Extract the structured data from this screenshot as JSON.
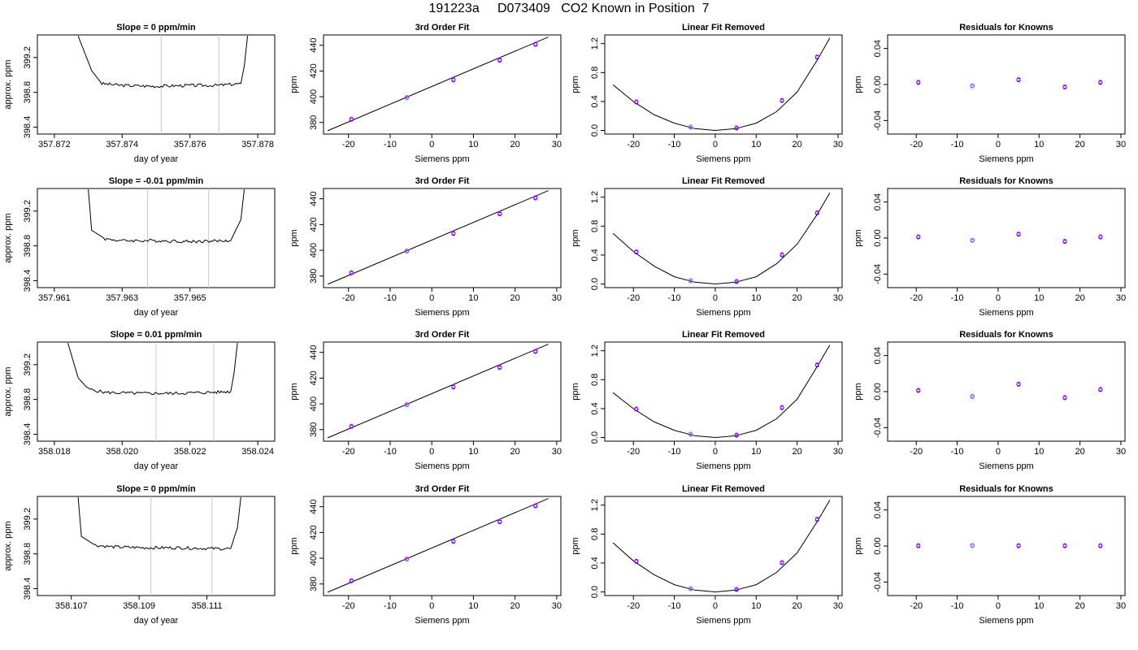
{
  "page": {
    "title": "191223a     D073409   CO2 Known in Position  7"
  },
  "colors": {
    "line": "#000000",
    "grid": "#c8c8c8",
    "knownA": "#0000ff",
    "knownB": "#ff00ff",
    "knownC": "#00c0ff"
  },
  "chart_data": [
    {
      "type": "line",
      "row": 0,
      "title": "Slope =  0  ppm/min",
      "xlabel": "day of year",
      "ylabel": "approx. ppm",
      "xlim": [
        357.8715,
        357.8785
      ],
      "ylim": [
        398.32,
        399.46
      ],
      "xticks": [
        "357.872",
        "357.874",
        "357.876",
        "357.878"
      ],
      "yticks": [
        "398.4",
        "398.8",
        "399.2"
      ],
      "vlines": [
        357.87515,
        357.87685
      ],
      "x": [
        357.8727,
        357.8731,
        357.8734,
        357.874,
        357.875,
        357.876,
        357.8768,
        357.8775,
        357.8776,
        357.8777
      ],
      "y": [
        399.45,
        399.05,
        398.9,
        398.88,
        398.87,
        398.88,
        398.88,
        398.9,
        399.1,
        399.45
      ]
    },
    {
      "type": "line",
      "row": 1,
      "title": "Slope =  -0.01  ppm/min",
      "xlabel": "day of year",
      "ylabel": "approx. ppm",
      "xlim": [
        357.9605,
        357.9675
      ],
      "ylim": [
        398.32,
        399.46
      ],
      "xticks": [
        "357.961",
        "357.963",
        "357.965"
      ],
      "yticks": [
        "398.4",
        "398.8",
        "399.2"
      ],
      "vlines": [
        357.96375,
        357.96555
      ],
      "x": [
        357.962,
        357.9621,
        357.9625,
        357.963,
        357.964,
        357.965,
        357.9662,
        357.9665,
        357.9666
      ],
      "y": [
        399.45,
        398.98,
        398.88,
        398.86,
        398.86,
        398.85,
        398.86,
        399.1,
        399.45
      ]
    },
    {
      "type": "line",
      "row": 2,
      "title": "Slope =  0.01  ppm/min",
      "xlabel": "day of year",
      "ylabel": "approx. ppm",
      "xlim": [
        358.0175,
        358.0245
      ],
      "ylim": [
        398.32,
        399.46
      ],
      "xticks": [
        "358.018",
        "358.020",
        "358.022",
        "358.024"
      ],
      "yticks": [
        "398.4",
        "398.8",
        "399.2"
      ],
      "vlines": [
        358.021,
        358.0227
      ],
      "x": [
        358.0184,
        358.0187,
        358.019,
        358.0195,
        358.0205,
        358.0215,
        358.0225,
        358.0232,
        358.0233,
        358.0234
      ],
      "y": [
        399.45,
        399.05,
        398.92,
        398.88,
        398.87,
        398.87,
        398.88,
        398.89,
        399.1,
        399.45
      ]
    },
    {
      "type": "line",
      "row": 3,
      "title": "Slope =  0  ppm/min",
      "xlabel": "day of year",
      "ylabel": "approx. ppm",
      "xlim": [
        358.106,
        358.113
      ],
      "ylim": [
        398.32,
        399.46
      ],
      "xticks": [
        "358.107",
        "358.109",
        "358.111"
      ],
      "yticks": [
        "398.4",
        "398.8",
        "399.2"
      ],
      "vlines": [
        358.10935,
        358.11115
      ],
      "x": [
        358.1072,
        358.1073,
        358.1077,
        358.1082,
        358.1092,
        358.1102,
        358.1112,
        358.1117,
        358.1119,
        358.112
      ],
      "y": [
        399.45,
        399.0,
        398.9,
        398.88,
        398.87,
        398.87,
        398.86,
        398.86,
        399.1,
        399.45
      ]
    },
    {
      "type": "scatter",
      "row": 0,
      "title": "3rd Order Fit",
      "xlabel": "Siemens ppm",
      "ylabel": "ppm",
      "xlim": [
        -26,
        31
      ],
      "ylim": [
        371,
        448
      ],
      "xticks": [
        "-20",
        "-10",
        "0",
        "10",
        "20",
        "30"
      ],
      "yticks": [
        "380",
        "400",
        "420",
        "440"
      ],
      "fit_line": {
        "x": [
          -25,
          28
        ],
        "y": [
          373.6,
          446.4
        ]
      },
      "points": {
        "x": [
          -19.3,
          -6.0,
          5.2,
          16.3,
          24.9
        ],
        "y": [
          382.3,
          399.0,
          412.9,
          428.2,
          440.5
        ]
      }
    },
    {
      "type": "scatter",
      "row": 1,
      "title": "3rd Order Fit",
      "xlabel": "Siemens ppm",
      "ylabel": "ppm",
      "xlim": [
        -26,
        31
      ],
      "ylim": [
        371,
        448
      ],
      "xticks": [
        "-20",
        "-10",
        "0",
        "10",
        "20",
        "30"
      ],
      "yticks": [
        "380",
        "400",
        "420",
        "440"
      ],
      "fit_line": {
        "x": [
          -25,
          28
        ],
        "y": [
          373.6,
          446.4
        ]
      },
      "points": {
        "x": [
          -19.3,
          -6.0,
          5.2,
          16.3,
          24.9
        ],
        "y": [
          382.3,
          399.0,
          412.9,
          428.2,
          440.5
        ]
      }
    },
    {
      "type": "scatter",
      "row": 2,
      "title": "3rd Order Fit",
      "xlabel": "Siemens ppm",
      "ylabel": "ppm",
      "xlim": [
        -26,
        31
      ],
      "ylim": [
        371,
        448
      ],
      "xticks": [
        "-20",
        "-10",
        "0",
        "10",
        "20",
        "30"
      ],
      "yticks": [
        "380",
        "400",
        "420",
        "440"
      ],
      "fit_line": {
        "x": [
          -25,
          28
        ],
        "y": [
          373.6,
          446.4
        ]
      },
      "points": {
        "x": [
          -19.3,
          -6.0,
          5.2,
          16.3,
          24.9
        ],
        "y": [
          382.3,
          399.0,
          412.9,
          428.2,
          440.5
        ]
      }
    },
    {
      "type": "scatter",
      "row": 3,
      "title": "3rd Order Fit",
      "xlabel": "Siemens ppm",
      "ylabel": "ppm",
      "xlim": [
        -26,
        31
      ],
      "ylim": [
        371,
        448
      ],
      "xticks": [
        "-20",
        "-10",
        "0",
        "10",
        "20",
        "30"
      ],
      "yticks": [
        "380",
        "400",
        "420",
        "440"
      ],
      "fit_line": {
        "x": [
          -25,
          28
        ],
        "y": [
          373.6,
          446.4
        ]
      },
      "points": {
        "x": [
          -19.3,
          -6.0,
          5.2,
          16.3,
          24.9
        ],
        "y": [
          382.3,
          399.0,
          412.9,
          428.2,
          440.5
        ]
      }
    },
    {
      "type": "scatter",
      "row": 0,
      "title": "Linear Fit Removed",
      "xlabel": "Siemens ppm",
      "ylabel": "ppm",
      "xlim": [
        -27,
        31
      ],
      "ylim": [
        -0.05,
        1.32
      ],
      "xticks": [
        "-20",
        "-10",
        "0",
        "10",
        "20",
        "30"
      ],
      "yticks": [
        "0.0",
        "0.4",
        "0.8",
        "1.2"
      ],
      "curve": {
        "x": [
          -25,
          -20,
          -15,
          -10,
          -5,
          0,
          5,
          10,
          15,
          20,
          25,
          28
        ],
        "y": [
          0.63,
          0.4,
          0.22,
          0.1,
          0.025,
          0.0,
          0.025,
          0.1,
          0.26,
          0.53,
          0.98,
          1.28
        ]
      },
      "points": {
        "x": [
          -19.3,
          -6.0,
          5.2,
          16.3,
          24.9
        ],
        "y": [
          0.39,
          0.04,
          0.03,
          0.41,
          1.01
        ]
      }
    },
    {
      "type": "scatter",
      "row": 1,
      "title": "Linear Fit Removed",
      "xlabel": "Siemens ppm",
      "ylabel": "ppm",
      "xlim": [
        -27,
        31
      ],
      "ylim": [
        -0.05,
        1.32
      ],
      "xticks": [
        "-20",
        "-10",
        "0",
        "10",
        "20",
        "30"
      ],
      "yticks": [
        "0.0",
        "0.4",
        "0.8",
        "1.2"
      ],
      "curve": {
        "x": [
          -25,
          -20,
          -15,
          -10,
          -5,
          0,
          5,
          10,
          15,
          20,
          25,
          28
        ],
        "y": [
          0.7,
          0.45,
          0.25,
          0.1,
          0.025,
          0.0,
          0.025,
          0.1,
          0.28,
          0.55,
          0.97,
          1.26
        ]
      },
      "points": {
        "x": [
          -19.3,
          -6.0,
          5.2,
          16.3,
          24.9
        ],
        "y": [
          0.44,
          0.04,
          0.03,
          0.4,
          0.98
        ]
      }
    },
    {
      "type": "scatter",
      "row": 2,
      "title": "Linear Fit Removed",
      "xlabel": "Siemens ppm",
      "ylabel": "ppm",
      "xlim": [
        -27,
        31
      ],
      "ylim": [
        -0.05,
        1.32
      ],
      "xticks": [
        "-20",
        "-10",
        "0",
        "10",
        "20",
        "30"
      ],
      "yticks": [
        "0.0",
        "0.4",
        "0.8",
        "1.2"
      ],
      "curve": {
        "x": [
          -25,
          -20,
          -15,
          -10,
          -5,
          0,
          5,
          10,
          15,
          20,
          25,
          28
        ],
        "y": [
          0.62,
          0.4,
          0.22,
          0.1,
          0.025,
          0.0,
          0.025,
          0.1,
          0.26,
          0.53,
          0.99,
          1.28
        ]
      },
      "points": {
        "x": [
          -19.3,
          -6.0,
          5.2,
          16.3,
          24.9
        ],
        "y": [
          0.39,
          0.04,
          0.03,
          0.41,
          1.0
        ]
      }
    },
    {
      "type": "scatter",
      "row": 3,
      "title": "Linear Fit Removed",
      "xlabel": "Siemens ppm",
      "ylabel": "ppm",
      "xlim": [
        -27,
        31
      ],
      "ylim": [
        -0.05,
        1.32
      ],
      "xticks": [
        "-20",
        "-10",
        "0",
        "10",
        "20",
        "30"
      ],
      "yticks": [
        "0.0",
        "0.4",
        "0.8",
        "1.2"
      ],
      "curve": {
        "x": [
          -25,
          -20,
          -15,
          -10,
          -5,
          0,
          5,
          10,
          15,
          20,
          25,
          28
        ],
        "y": [
          0.68,
          0.43,
          0.24,
          0.1,
          0.025,
          0.0,
          0.025,
          0.1,
          0.27,
          0.54,
          0.98,
          1.27
        ]
      },
      "points": {
        "x": [
          -19.3,
          -6.0,
          5.2,
          16.3,
          24.9
        ],
        "y": [
          0.42,
          0.04,
          0.03,
          0.4,
          1.0
        ]
      }
    },
    {
      "type": "scatter",
      "row": 0,
      "title": "Residuals for Knowns",
      "xlabel": "Siemens ppm",
      "ylabel": "ppm",
      "xlim": [
        -27,
        31
      ],
      "ylim": [
        -0.055,
        0.055
      ],
      "xticks": [
        "-20",
        "-10",
        "0",
        "10",
        "20",
        "30"
      ],
      "yticks": [
        "-0.04",
        "0.00",
        "0.04"
      ],
      "points": {
        "x": [
          -19.5,
          -6.3,
          5.0,
          16.3,
          25.0
        ],
        "y": [
          0.002,
          -0.002,
          0.005,
          -0.003,
          0.002
        ]
      }
    },
    {
      "type": "scatter",
      "row": 1,
      "title": "Residuals for Knowns",
      "xlabel": "Siemens ppm",
      "ylabel": "ppm",
      "xlim": [
        -27,
        31
      ],
      "ylim": [
        -0.055,
        0.055
      ],
      "xticks": [
        "-20",
        "-10",
        "0",
        "10",
        "20",
        "30"
      ],
      "yticks": [
        "-0.04",
        "0.00",
        "0.04"
      ],
      "points": {
        "x": [
          -19.5,
          -6.3,
          5.0,
          16.3,
          25.0
        ],
        "y": [
          0.001,
          -0.003,
          0.004,
          -0.004,
          0.001
        ]
      }
    },
    {
      "type": "scatter",
      "row": 2,
      "title": "Residuals for Knowns",
      "xlabel": "Siemens ppm",
      "ylabel": "ppm",
      "xlim": [
        -27,
        31
      ],
      "ylim": [
        -0.055,
        0.055
      ],
      "xticks": [
        "-20",
        "-10",
        "0",
        "10",
        "20",
        "30"
      ],
      "yticks": [
        "-0.04",
        "0.00",
        "0.04"
      ],
      "points": {
        "x": [
          -19.5,
          -6.3,
          5.0,
          16.3,
          25.0
        ],
        "y": [
          0.001,
          -0.006,
          0.008,
          -0.007,
          0.002
        ]
      }
    },
    {
      "type": "scatter",
      "row": 3,
      "title": "Residuals for Knowns",
      "xlabel": "Siemens ppm",
      "ylabel": "ppm",
      "xlim": [
        -27,
        31
      ],
      "ylim": [
        -0.055,
        0.055
      ],
      "xticks": [
        "-20",
        "-10",
        "0",
        "10",
        "20",
        "30"
      ],
      "yticks": [
        "-0.04",
        "0.00",
        "0.04"
      ],
      "points": {
        "x": [
          -19.5,
          -6.3,
          5.0,
          16.3,
          25.0
        ],
        "y": [
          0.0,
          0.0,
          0.0,
          0.0,
          0.0
        ]
      }
    }
  ]
}
